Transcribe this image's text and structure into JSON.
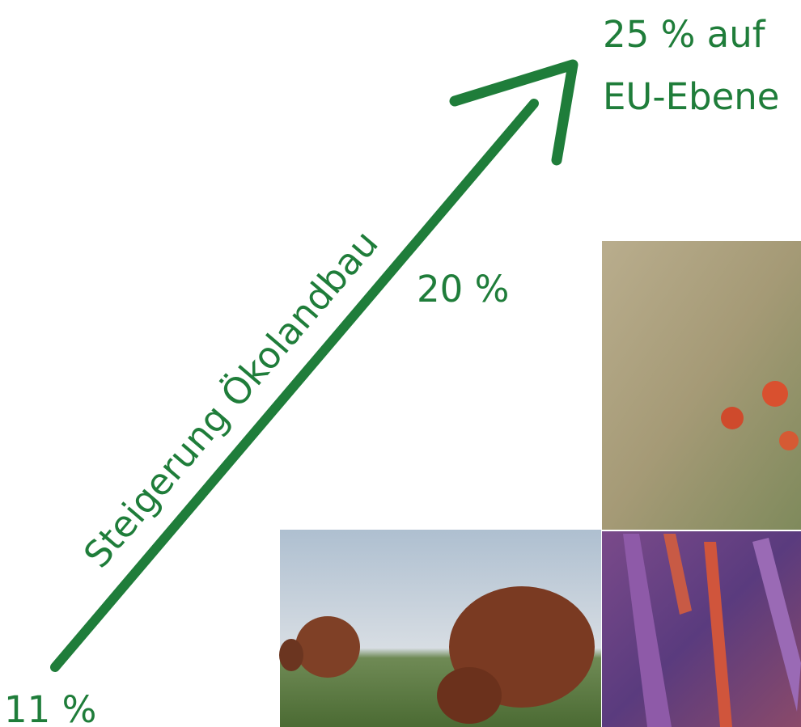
{
  "target": {
    "lines": [
      "25 % auf",
      "EU-Ebene"
    ]
  },
  "arrow_label": "Steigerung Ökolandbau",
  "milestone": "20 %",
  "start": "11 %"
}
